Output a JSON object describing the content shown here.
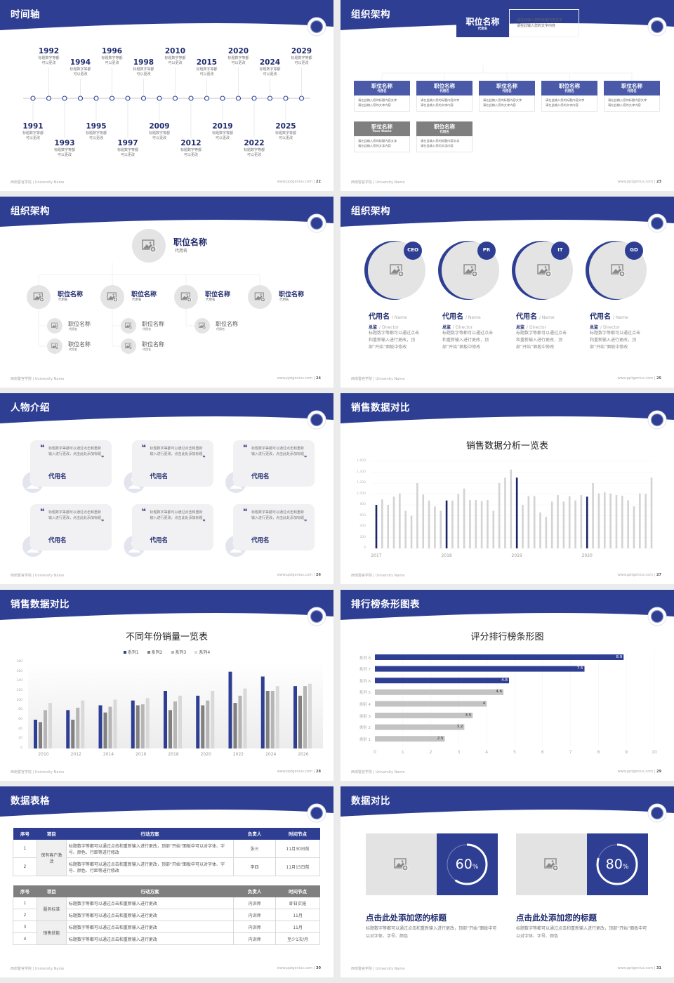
{
  "colors": {
    "primary": "#2e3f93",
    "dark_bar": "#1c2566",
    "light_bar": "#d3d3d3",
    "gray_header": "#7f7f7f",
    "placeholder": "#e3e3e3"
  },
  "footer": {
    "left": "西南警官学院 | University Name",
    "url": "www.pptgenius.com"
  },
  "slides": [
    {
      "title": "时间轴",
      "page": "22",
      "items": [
        {
          "year": "1991",
          "desc": "标题数字等都可以更改"
        },
        {
          "year": "1992",
          "desc": "标题数字等都可以更改"
        },
        {
          "year": "1993",
          "desc": "标题数字等都可以更改"
        },
        {
          "year": "1994",
          "desc": "标题数字等都可以更改"
        },
        {
          "year": "1995",
          "desc": "标题数字等都可以更改"
        },
        {
          "year": "1996",
          "desc": "标题数字等都可以更改"
        },
        {
          "year": "1997",
          "desc": "标题数字等都可以更改"
        },
        {
          "year": "1998",
          "desc": "标题数字等都可以更改"
        },
        {
          "year": "2009",
          "desc": "标题数字等都可以更改"
        },
        {
          "year": "2010",
          "desc": "标题数字等都可以更改"
        },
        {
          "year": "2012",
          "desc": "标题数字等都可以更改"
        },
        {
          "year": "2015",
          "desc": "标题数字等都可以更改"
        },
        {
          "year": "2019",
          "desc": "标题数字等都可以更改"
        },
        {
          "year": "2020",
          "desc": "标题数字等都可以更改"
        },
        {
          "year": "2022",
          "desc": "标题数字等都可以更改"
        },
        {
          "year": "2024",
          "desc": "标题数字等都可以更改"
        },
        {
          "year": "2025",
          "desc": "标题数字等都可以更改"
        },
        {
          "year": "2029",
          "desc": "标题数字等都可以更改"
        }
      ]
    },
    {
      "title": "组织架构",
      "page": "23",
      "top": {
        "title": "职位名称",
        "sub": "代用名",
        "lines": [
          "请在此输入您的标题内容文字",
          "请在此输入您的文字内容"
        ]
      },
      "boxes": [
        {
          "title": "职位名称",
          "sub": "代用名",
          "lines": [
            "请在此输入您的标题内容文字",
            "请在此输入您的文字内容"
          ],
          "style": "blue"
        },
        {
          "title": "职位名称",
          "sub": "代用名",
          "lines": [
            "请在此输入您的标题内容文字",
            "请在此输入您的文字内容"
          ],
          "style": "blue"
        },
        {
          "title": "职位名称",
          "sub": "代用名",
          "lines": [
            "请在此输入您的标题内容文字",
            "请在此输入您的文字内容"
          ],
          "style": "blue"
        },
        {
          "title": "职位名称",
          "sub": "代用名",
          "lines": [
            "请在此输入您的标题内容文字",
            "请在此输入您的文字内容"
          ],
          "style": "blue"
        },
        {
          "title": "职位名称",
          "sub": "代用名",
          "lines": [
            "请在此输入您的标题内容文字",
            "请在此输入您的文字内容"
          ],
          "style": "blue"
        },
        {
          "title": "职位名称",
          "sub": "Your Name",
          "lines": [
            "请在此输入您的标题内容文字",
            "请在此输入您的文字内容"
          ],
          "style": "gray"
        },
        {
          "title": "职位名称",
          "sub": "代用名",
          "lines": [
            "请在此输入您的标题内容文字",
            "请在此输入您的文字内容"
          ],
          "style": "gray"
        }
      ]
    },
    {
      "title": "组织架构",
      "page": "24",
      "top": {
        "title": "职位名称",
        "sub": "代用名"
      },
      "level2": [
        {
          "title": "职位名称",
          "sub": "代用名",
          "children": [
            {
              "title": "职位名称",
              "sub": "代用名"
            },
            {
              "title": "职位名称",
              "sub": "代用名"
            }
          ]
        },
        {
          "title": "职位名称",
          "sub": "代用名",
          "children": [
            {
              "title": "职位名称",
              "sub": "代用名"
            },
            {
              "title": "职位名称",
              "sub": "代用名"
            }
          ]
        },
        {
          "title": "职位名称",
          "sub": "代用名",
          "children": [
            {
              "title": "职位名称",
              "sub": "代用名"
            }
          ]
        },
        {
          "title": "职位名称",
          "sub": "代用名",
          "children": []
        }
      ]
    },
    {
      "title": "组织架构",
      "page": "25",
      "people": [
        {
          "badge": "CEO",
          "name": "代用名",
          "name_en": "/ Name",
          "role": "总监",
          "role_en": "/ Director",
          "desc": "标题数字等都可以通过点击和重新输入进行更改，顶部“开始”面板中修改"
        },
        {
          "badge": "PR",
          "name": "代用名",
          "name_en": "/ Name",
          "role": "总监",
          "role_en": "/ Director",
          "desc": "标题数字等都可以通过点击和重新输入进行更改，顶部“开始”面板中修改"
        },
        {
          "badge": "IT",
          "name": "代用名",
          "name_en": "/ Name",
          "role": "总监",
          "role_en": "/ Director",
          "desc": "标题数字等都可以通过点击和重新输入进行更改，顶部“开始”面板中修改"
        },
        {
          "badge": "GD",
          "name": "代用名",
          "name_en": "/ Name",
          "role": "总监",
          "role_en": "/ Director",
          "desc": "标题数字等都可以通过点击和重新输入进行更改，顶部“开始”面板中修改"
        }
      ]
    },
    {
      "title": "人物介绍",
      "page": "26",
      "cards": [
        {
          "quote": "标题数字等都可以通过点击和重新输入进行更改，点击此处添加标题",
          "name": "代用名"
        },
        {
          "quote": "标题数字等都可以通过点击和重新输入进行更改，点击此处添加标题",
          "name": "代用名"
        },
        {
          "quote": "标题数字等都可以通过点击和重新输入进行更改，点击此处添加标题",
          "name": "代用名"
        },
        {
          "quote": "标题数字等都可以通过点击和重新输入进行更改，点击此处添加标题",
          "name": "代用名"
        },
        {
          "quote": "标题数字等都可以通过点击和重新输入进行更改，点击此处添加标题",
          "name": "代用名"
        },
        {
          "quote": "标题数字等都可以通过点击和重新输入进行更改，点击此处添加标题",
          "name": "代用名"
        }
      ]
    },
    {
      "title": "销售数据对比",
      "page": "27"
    },
    {
      "title": "销售数据对比",
      "page": "28"
    },
    {
      "title": "排行榜条形图表",
      "page": "29"
    },
    {
      "title": "数据表格",
      "page": "30",
      "table1": {
        "headers": [
          "序号",
          "项目",
          "行动方案",
          "负责人",
          "时间节点"
        ],
        "rows": [
          {
            "no": "1",
            "project": "保有客户激活",
            "plan": "标题数字等都可以通过点击和重新输入进行更改，顶部“开始”面板中可以对字体、字号、颜色、行距等进行修改",
            "owner": "张三",
            "time": "11月30日前"
          },
          {
            "no": "2",
            "project": "",
            "plan": "标题数字等都可以通过点击和重新输入进行更改，顶部“开始”面板中可以对字体、字号、颜色、行距等进行修改",
            "owner": "李四",
            "time": "11月15日前"
          }
        ]
      },
      "table2": {
        "headers": [
          "序号",
          "项目",
          "行动方案",
          "负责人",
          "时间节点"
        ],
        "rows": [
          {
            "no": "1",
            "project": "服务标准",
            "plan": "标题数字等都可以通过点击和重新输入进行更改",
            "owner": "内训师",
            "time": "即日实施"
          },
          {
            "no": "2",
            "project": "",
            "plan": "标题数字等都可以通过点击和重新输入进行更改",
            "owner": "内训师",
            "time": "11月"
          },
          {
            "no": "3",
            "project": "销售技能",
            "plan": "标题数字等都可以通过点击和重新输入进行更改",
            "owner": "内训师",
            "time": "11月"
          },
          {
            "no": "4",
            "project": "",
            "plan": "标题数字等都可以通过点击和重新输入进行更改",
            "owner": "内训师",
            "time": "至少1次/月"
          }
        ]
      }
    },
    {
      "title": "数据对比",
      "page": "31",
      "stats": [
        {
          "value": "60",
          "unit": "%",
          "percent": 60,
          "heading": "点击此处添加您的标题",
          "desc": "标题数字等都可以通过点击和重新输入进行更改，顶部“开始”面板中可以对字体、字号、颜色"
        },
        {
          "value": "80",
          "unit": "%",
          "percent": 80,
          "heading": "点击此处添加您的标题",
          "desc": "标题数字等都可以通过点击和重新输入进行更改，顶部“开始”面板中可以对字体、字号、颜色"
        }
      ]
    }
  ],
  "chart_data": [
    {
      "type": "bar",
      "title": "销售数据分析一览表",
      "x_labels": [
        "2017",
        "2018",
        "2019",
        "2020"
      ],
      "values": [
        800,
        900,
        800,
        950,
        1010,
        690,
        600,
        1200,
        990,
        880,
        770,
        690,
        880,
        880,
        1000,
        1100,
        890,
        890,
        870,
        890,
        690,
        1200,
        1300,
        1450,
        1300,
        800,
        960,
        960,
        660,
        580,
        860,
        980,
        860,
        960,
        880,
        980,
        950,
        1200,
        1010,
        1030,
        1010,
        980,
        965,
        884,
        772,
        1010,
        1000,
        1300
      ],
      "highlight_every": 12,
      "ylim": [
        0,
        1600
      ],
      "yticks": [
        "0",
        "200",
        "400",
        "600",
        "800",
        "1,000",
        "1,200",
        "1,400",
        "1,600"
      ],
      "grid": true
    },
    {
      "type": "bar",
      "title": "不同年份销量一览表",
      "categories": [
        "2010",
        "2012",
        "2014",
        "2016",
        "2018",
        "2020",
        "2022",
        "2024",
        "2026"
      ],
      "series": [
        {
          "name": "系列1",
          "color": "#2e3f93",
          "values": [
            60,
            80,
            90,
            100,
            120,
            110,
            160,
            150,
            130
          ]
        },
        {
          "name": "系列2",
          "color": "#808080",
          "values": [
            55,
            60,
            75,
            90,
            80,
            90,
            95,
            120,
            110
          ]
        },
        {
          "name": "系列3",
          "color": "#b5b5b5",
          "values": [
            80,
            85,
            87,
            92,
            98,
            100,
            110,
            120,
            130
          ]
        },
        {
          "name": "系列4",
          "color": "#d9d9d9",
          "values": [
            95,
            100,
            102,
            105,
            110,
            120,
            125,
            130,
            135
          ]
        }
      ],
      "ylim": [
        0,
        180
      ],
      "yticks": [
        "0",
        "20",
        "40",
        "60",
        "80",
        "100",
        "120",
        "140",
        "160",
        "180"
      ],
      "legend": "top"
    },
    {
      "type": "bar",
      "orientation": "horizontal",
      "title": "评分排行榜条形图",
      "categories": [
        "系列 8",
        "系列 7",
        "系列 6",
        "系列 5",
        "类别 4",
        "类别 3",
        "类别 2",
        "类别 1"
      ],
      "values": [
        8.9,
        7.5,
        4.8,
        4.6,
        4,
        3.5,
        3.2,
        2.5
      ],
      "value_labels": [
        "8.9",
        "7.5",
        "4.8",
        "4.6",
        "4",
        "3.5",
        "3.2",
        "2.5"
      ],
      "highlight_top": 3,
      "xlim": [
        0,
        10
      ],
      "xticks": [
        "0",
        "1",
        "2",
        "3",
        "4",
        "5",
        "6",
        "7",
        "8",
        "9",
        "10"
      ],
      "grid": true
    }
  ]
}
